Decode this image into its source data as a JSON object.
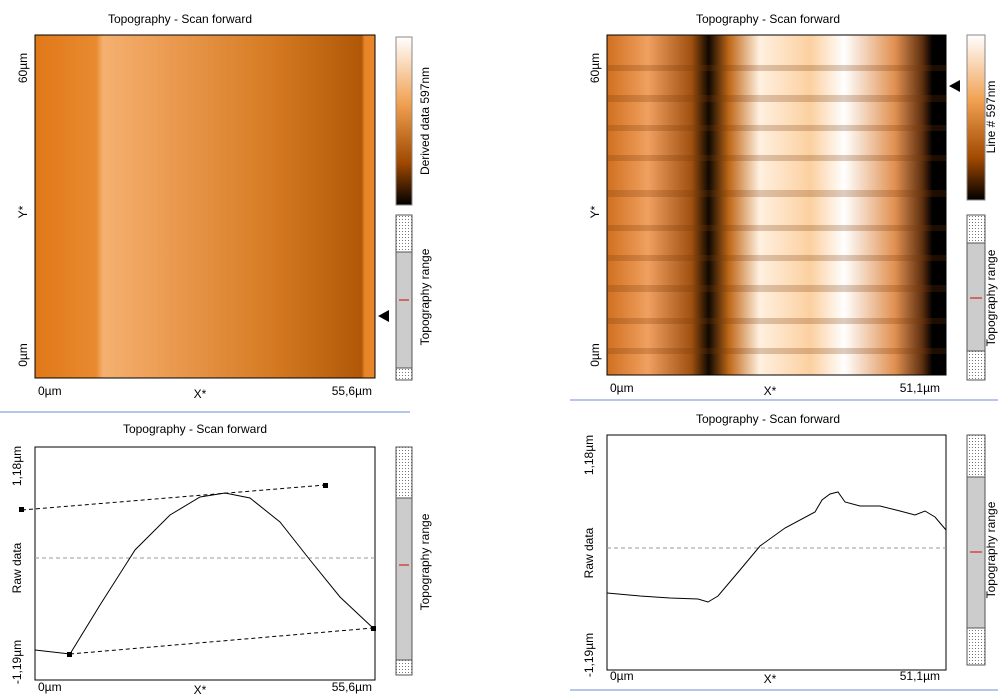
{
  "panels": [
    {
      "image_title": "Topography - Scan forward",
      "image_y_labels": [
        "60µm",
        "Y*",
        "0µm"
      ],
      "image_x_labels": [
        "0µm",
        "X*",
        "55,6µm"
      ],
      "colorbar_label": "Derived data 597nm",
      "range_label": "Topography range",
      "profile_title": "Topography - Scan forward",
      "profile_y_labels": [
        "1,18µm",
        "Raw data",
        "-1,19µm"
      ],
      "profile_x_labels": [
        "0µm",
        "X*",
        "55,6µm"
      ],
      "profile_range_label": "Topography range"
    },
    {
      "image_title": "Topography - Scan forward",
      "image_y_labels": [
        "60µm",
        "Y*",
        "0µm"
      ],
      "image_x_labels": [
        "0µm",
        "X*",
        "51,1µm"
      ],
      "colorbar_label": "Line # 597nm",
      "range_label": "Topography range",
      "profile_title": "Topography - Scan forward",
      "profile_y_labels": [
        "1,18µm",
        "Raw data",
        "-1,19µm"
      ],
      "profile_x_labels": [
        "0µm",
        "X*",
        "51,1µm"
      ],
      "profile_range_label": "Topography range"
    }
  ]
}
